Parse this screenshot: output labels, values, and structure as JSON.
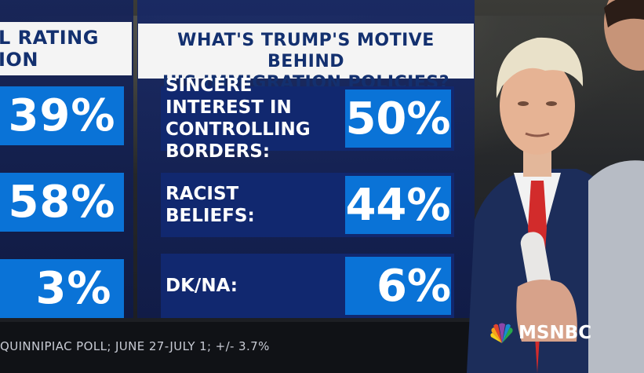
{
  "left_column": {
    "header_lines": [
      "L RATING",
      "ION"
    ],
    "values": [
      "39%",
      "58%",
      "3%"
    ]
  },
  "poll": {
    "title_lines": [
      "WHAT'S TRUMP'S MOTIVE BEHIND",
      "HIS IMMIGRATION POLICIES?"
    ],
    "rows": [
      {
        "label_lines": [
          "SINCERE INTEREST IN",
          "CONTROLLING BORDERS:"
        ],
        "value": "50%"
      },
      {
        "label_lines": [
          "RACIST",
          "BELIEFS:"
        ],
        "value": "44%"
      },
      {
        "label_lines": [
          "DK/NA:"
        ],
        "value": "6%"
      }
    ]
  },
  "source": "QUINNIPIAC POLL; JUNE 27-JULY 1; +/- 3.7%",
  "network": {
    "logo_text": "MSNBC"
  },
  "colors": {
    "panel_dark": "#11286f",
    "value_box": "#0a73d7",
    "header_bg": "#f4f4f4",
    "header_text": "#13306f",
    "tie_red": "#d22b2b"
  },
  "icons": [
    "peacock-logo-icon"
  ]
}
